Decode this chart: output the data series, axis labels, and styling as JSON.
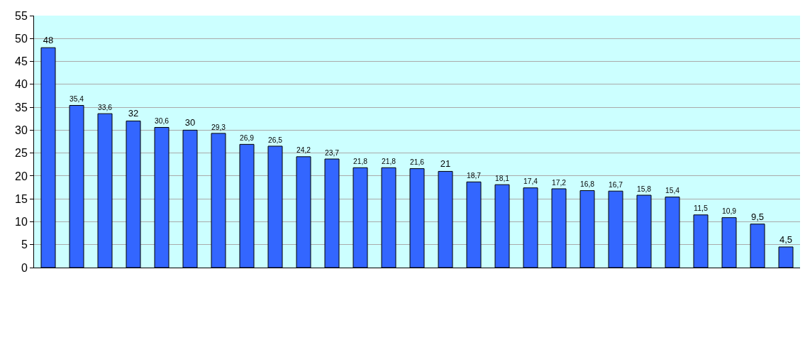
{
  "chart_data": {
    "type": "bar",
    "categories": [
      null,
      null,
      null,
      null,
      null,
      null,
      null,
      null,
      null,
      null,
      null,
      null,
      null,
      null,
      null,
      null,
      null,
      null,
      null,
      null,
      null,
      null,
      null,
      null,
      null,
      null,
      null
    ],
    "values": [
      48,
      35.4,
      33.6,
      32,
      30.6,
      30,
      29.3,
      26.9,
      26.5,
      24.2,
      23.7,
      21.8,
      21.8,
      21.6,
      21,
      18.7,
      18.1,
      17.4,
      17.2,
      16.8,
      16.7,
      15.8,
      15.4,
      11.5,
      10.9,
      9.5,
      4.5
    ],
    "value_labels": [
      "48",
      "35,4",
      "33,6",
      "32",
      "30,6",
      "30",
      "29,3",
      "26,9",
      "26,5",
      "24,2",
      "23,7",
      "21,8",
      "21,8",
      "21,6",
      "21",
      "18,7",
      "18,1",
      "17,4",
      "17,2",
      "16,8",
      "16,7",
      "15,8",
      "15,4",
      "11,5",
      "10,9",
      "9,5",
      "4,5"
    ],
    "color": "#3366ff",
    "ylim": [
      0,
      55
    ],
    "yticks": [
      0,
      5,
      10,
      15,
      20,
      25,
      30,
      35,
      40,
      45,
      50,
      55
    ],
    "grid": "y",
    "tick_labels": "y"
  }
}
